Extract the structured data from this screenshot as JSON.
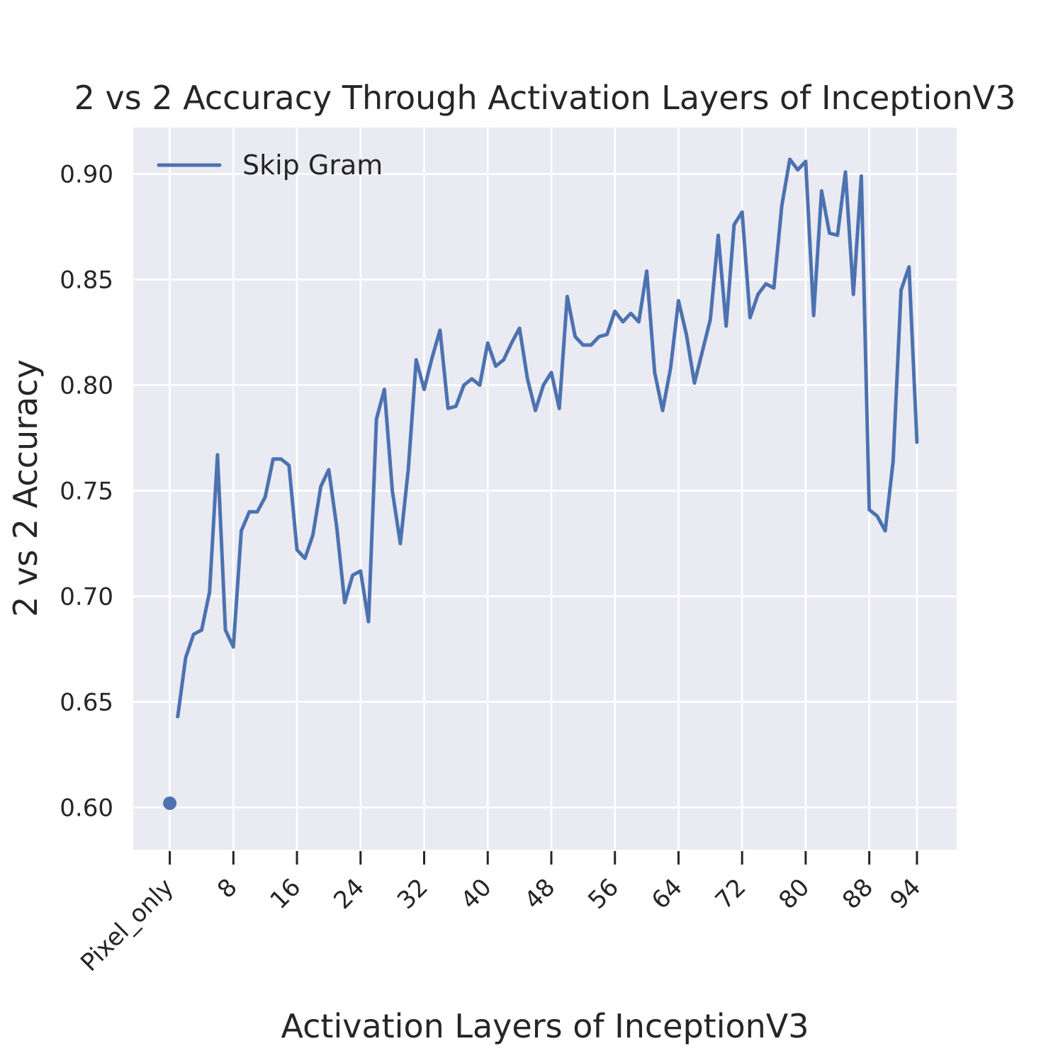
{
  "chart_data": {
    "type": "line",
    "title": "2 vs 2 Accuracy Through Activation Layers of InceptionV3",
    "xlabel": "Activation Layers of InceptionV3",
    "ylabel": "2 vs 2 Accuracy",
    "xlim": [
      -4.6,
      99
    ],
    "ylim": [
      0.58,
      0.922
    ],
    "grid": true,
    "legend_position": "upper-left",
    "x_ticks": [
      {
        "x": 0,
        "label": "Pixel_only"
      },
      {
        "x": 8,
        "label": "8"
      },
      {
        "x": 16,
        "label": "16"
      },
      {
        "x": 24,
        "label": "24"
      },
      {
        "x": 32,
        "label": "32"
      },
      {
        "x": 40,
        "label": "40"
      },
      {
        "x": 48,
        "label": "48"
      },
      {
        "x": 56,
        "label": "56"
      },
      {
        "x": 64,
        "label": "64"
      },
      {
        "x": 72,
        "label": "72"
      },
      {
        "x": 80,
        "label": "80"
      },
      {
        "x": 88,
        "label": "88"
      },
      {
        "x": 94,
        "label": "94"
      }
    ],
    "y_ticks": [
      "0.60",
      "0.65",
      "0.70",
      "0.75",
      "0.80",
      "0.85",
      "0.90"
    ],
    "series": [
      {
        "name": "Skip Gram",
        "color": "#4c72b0",
        "x": [
          1,
          2,
          3,
          4,
          5,
          6,
          7,
          8,
          9,
          10,
          11,
          12,
          13,
          14,
          15,
          16,
          17,
          18,
          19,
          20,
          21,
          22,
          23,
          24,
          25,
          26,
          27,
          28,
          29,
          30,
          31,
          32,
          33,
          34,
          35,
          36,
          37,
          38,
          39,
          40,
          41,
          42,
          43,
          44,
          45,
          46,
          47,
          48,
          49,
          50,
          51,
          52,
          53,
          54,
          55,
          56,
          57,
          58,
          59,
          60,
          61,
          62,
          63,
          64,
          65,
          66,
          67,
          68,
          69,
          70,
          71,
          72,
          73,
          74,
          75,
          76,
          77,
          78,
          79,
          80,
          81,
          82,
          83,
          84,
          85,
          86,
          87,
          88,
          89,
          90,
          91,
          92,
          93,
          94
        ],
        "values": [
          0.643,
          0.671,
          0.682,
          0.684,
          0.702,
          0.767,
          0.684,
          0.676,
          0.731,
          0.74,
          0.74,
          0.747,
          0.765,
          0.765,
          0.762,
          0.722,
          0.718,
          0.729,
          0.752,
          0.76,
          0.733,
          0.697,
          0.71,
          0.712,
          0.688,
          0.784,
          0.798,
          0.75,
          0.725,
          0.76,
          0.812,
          0.798,
          0.813,
          0.826,
          0.789,
          0.79,
          0.8,
          0.803,
          0.8,
          0.82,
          0.809,
          0.812,
          0.82,
          0.827,
          0.803,
          0.788,
          0.8,
          0.806,
          0.789,
          0.842,
          0.823,
          0.819,
          0.819,
          0.823,
          0.824,
          0.835,
          0.83,
          0.834,
          0.83,
          0.854,
          0.806,
          0.788,
          0.808,
          0.84,
          0.824,
          0.801,
          0.816,
          0.831,
          0.871,
          0.828,
          0.876,
          0.882,
          0.832,
          0.843,
          0.848,
          0.846,
          0.885,
          0.907,
          0.902,
          0.906,
          0.833,
          0.892,
          0.872,
          0.871,
          0.901,
          0.843,
          0.899,
          0.741,
          0.738,
          0.731,
          0.764,
          0.845,
          0.856,
          0.773
        ]
      },
      {
        "name": "Pixel_only",
        "type": "scatter",
        "color": "#4c72b0",
        "x": [
          0
        ],
        "values": [
          0.602
        ]
      }
    ],
    "legend": [
      {
        "label": "Skip Gram"
      }
    ]
  }
}
